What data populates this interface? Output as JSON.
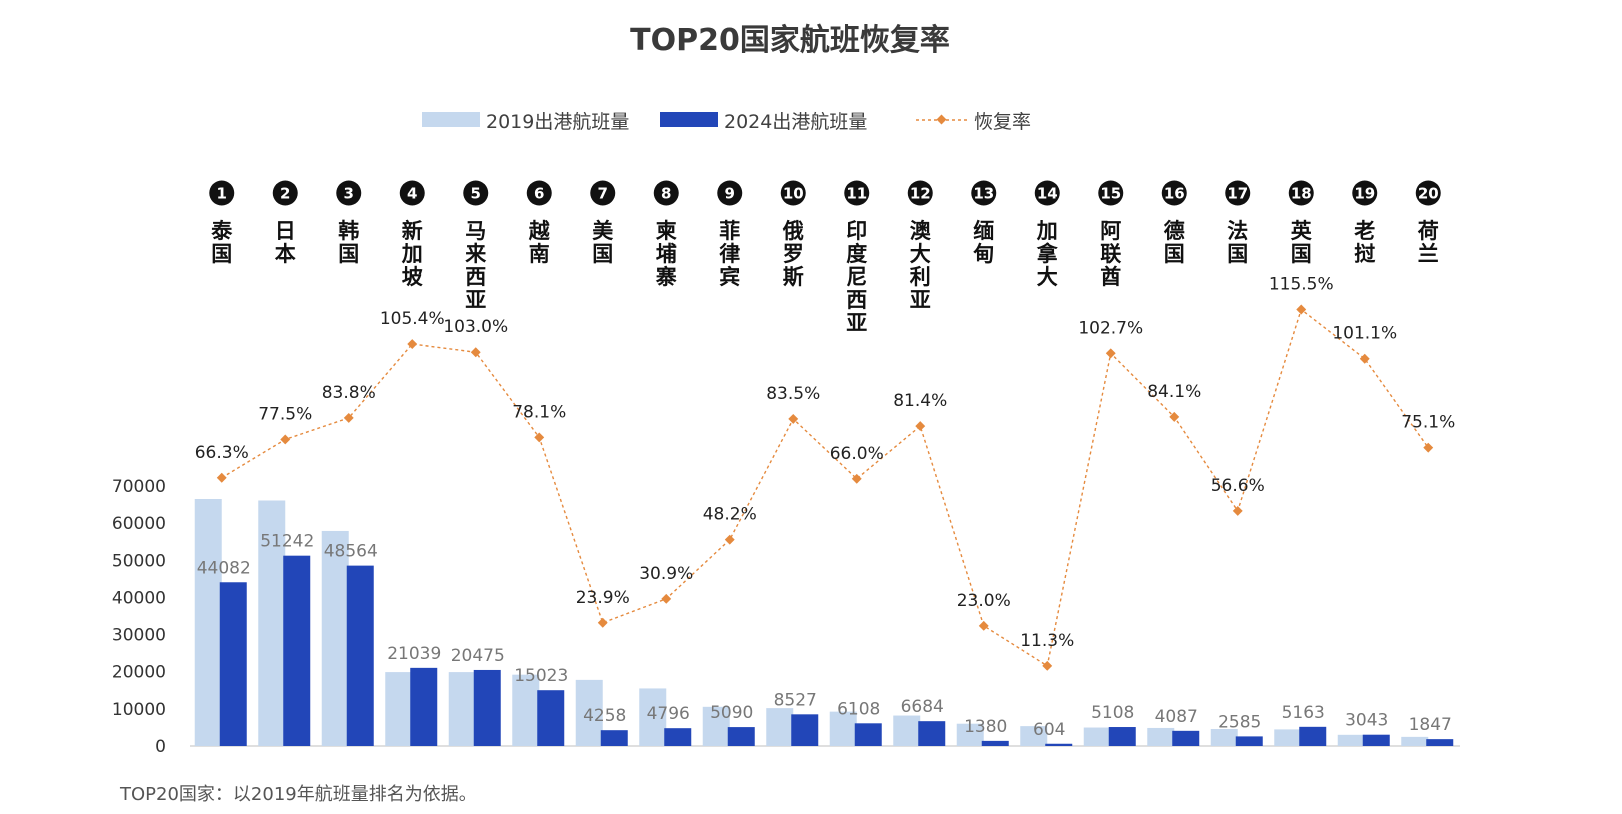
{
  "chart_data": {
    "type": "bar",
    "title": "TOP20国家航班恢复率",
    "ranks": [
      "1",
      "2",
      "3",
      "4",
      "5",
      "6",
      "7",
      "8",
      "9",
      "10",
      "11",
      "12",
      "13",
      "14",
      "15",
      "16",
      "17",
      "18",
      "19",
      "20"
    ],
    "categories": [
      "泰国",
      "日本",
      "韩国",
      "新加坡",
      "马来西亚",
      "越南",
      "美国",
      "柬埔寨",
      "菲律宾",
      "俄罗斯",
      "印度尼西亚",
      "澳大利亚",
      "缅甸",
      "加拿大",
      "阿联酋",
      "德国",
      "法国",
      "英国",
      "老挝",
      "荷兰"
    ],
    "ylim": [
      0,
      70000
    ],
    "yticks": [
      "0",
      "10000",
      "20000",
      "30000",
      "40000",
      "50000",
      "60000",
      "70000"
    ],
    "series": [
      {
        "name": "2019出港航班量",
        "color": "#c5d8ee",
        "values": [
          66500,
          66100,
          57900,
          19900,
          19900,
          19200,
          17800,
          15500,
          10550,
          10200,
          9250,
          8200,
          6000,
          5350,
          4970,
          4860,
          4570,
          4470,
          3010,
          2460
        ]
      },
      {
        "name": "2024出港航班量",
        "color": "#2246b8",
        "values": [
          44082,
          51242,
          48564,
          21039,
          20475,
          15023,
          4258,
          4796,
          5090,
          8527,
          6108,
          6684,
          1380,
          604,
          5108,
          4087,
          2585,
          5163,
          3043,
          1847
        ],
        "labels": [
          "44082",
          "51242",
          "48564",
          "21039",
          "20475",
          "15023",
          "4258",
          "4796",
          "5090",
          "8527",
          "6108",
          "6684",
          "1380",
          "604",
          "5108",
          "4087",
          "2585",
          "5163",
          "3043",
          "1847"
        ]
      },
      {
        "name": "恢复率",
        "color": "#e58a3e",
        "values": [
          66.3,
          77.5,
          83.8,
          105.4,
          103.0,
          78.1,
          23.9,
          30.9,
          48.2,
          83.5,
          66.0,
          81.4,
          23.0,
          11.3,
          102.7,
          84.1,
          56.6,
          115.5,
          101.1,
          75.1
        ],
        "labels": [
          "66.3%",
          "77.5%",
          "83.8%",
          "105.4%",
          "103.0%",
          "78.1%",
          "23.9%",
          "30.9%",
          "48.2%",
          "83.5%",
          "66.0%",
          "81.4%",
          "23.0%",
          "11.3%",
          "102.7%",
          "84.1%",
          "56.6%",
          "115.5%",
          "101.1%",
          "75.1%"
        ]
      }
    ],
    "legend_position": "top-center",
    "grid": false
  },
  "footnote": "TOP20国家：以2019年航班量排名为依据。"
}
